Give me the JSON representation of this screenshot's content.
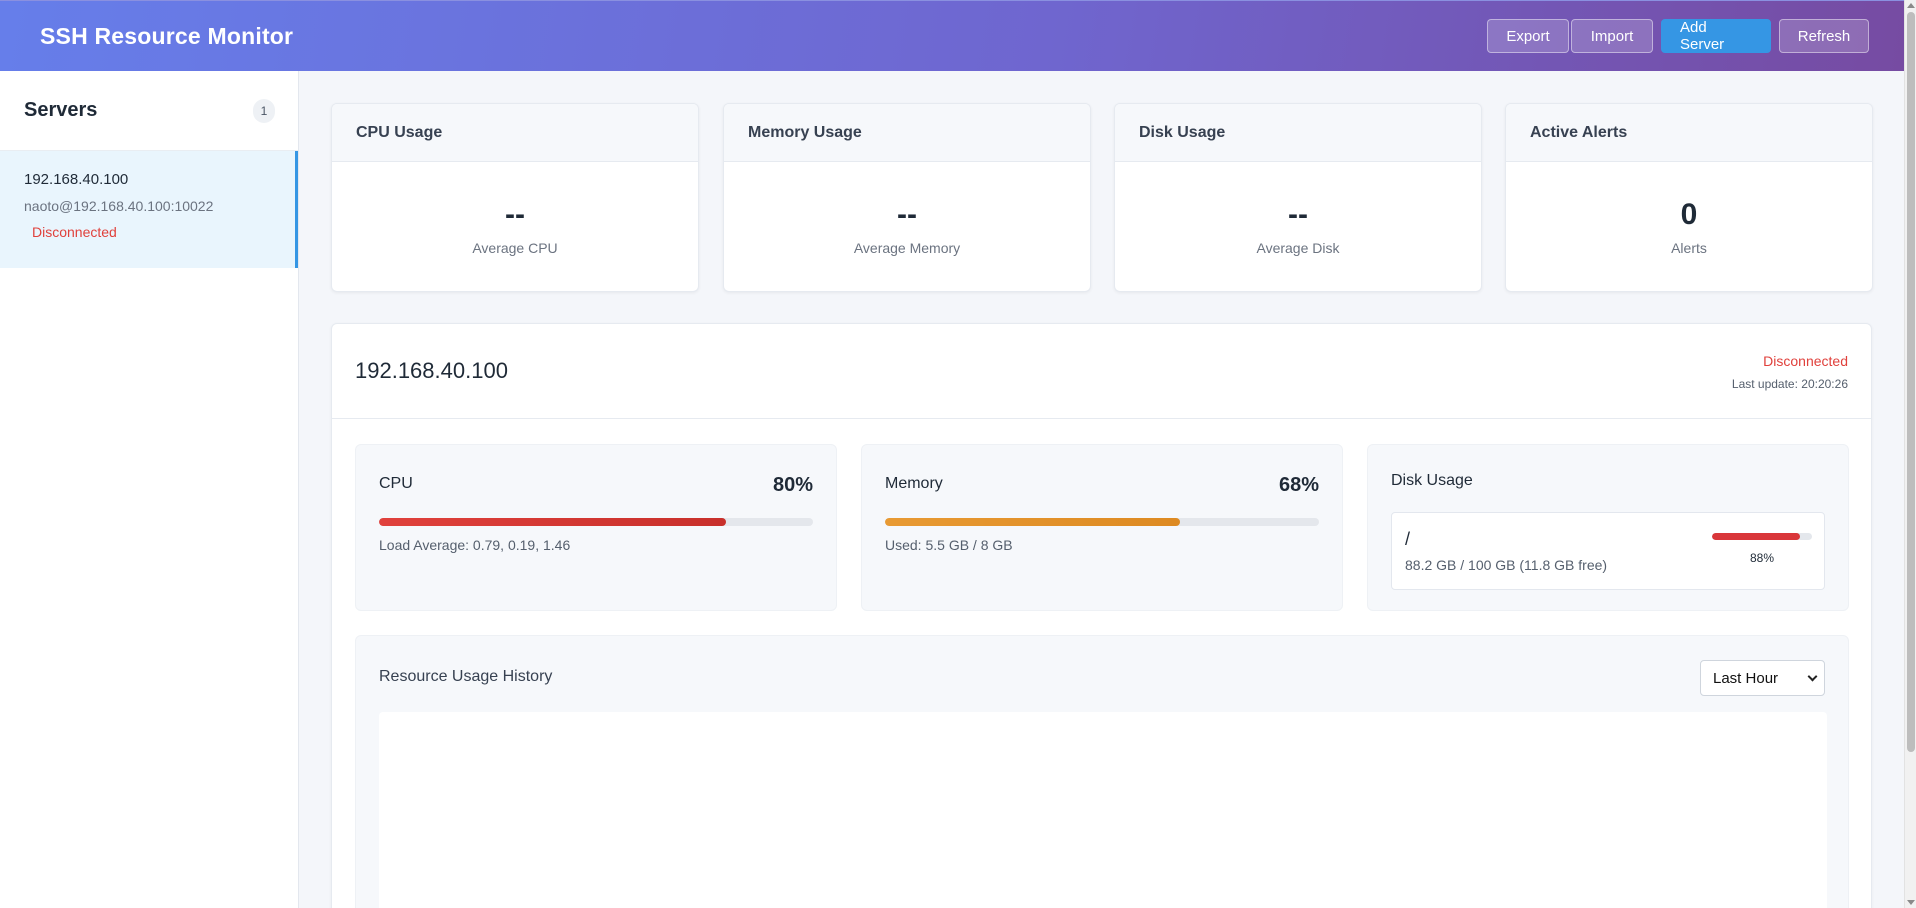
{
  "header": {
    "title": "SSH Resource Monitor",
    "buttons": {
      "export": "Export",
      "import": "Import",
      "add": "Add Server",
      "refresh": "Refresh"
    },
    "colors": {
      "gradient_start": "#667eea",
      "gradient_end": "#764ba2",
      "add_button": "#3596e4"
    }
  },
  "sidebar": {
    "title": "Servers",
    "count": "1",
    "servers": [
      {
        "name": "192.168.40.100",
        "connection": "naoto@192.168.40.100:10022",
        "status": "Disconnected"
      }
    ]
  },
  "summary": {
    "cpu": {
      "title": "CPU Usage",
      "value": "--",
      "label": "Average CPU"
    },
    "memory": {
      "title": "Memory Usage",
      "value": "--",
      "label": "Average Memory"
    },
    "disk": {
      "title": "Disk Usage",
      "value": "--",
      "label": "Average Disk"
    },
    "alerts": {
      "title": "Active Alerts",
      "value": "0",
      "label": "Alerts"
    }
  },
  "detail": {
    "title": "192.168.40.100",
    "status": "Disconnected",
    "last_update": "Last update: 20:20:26",
    "cpu": {
      "label": "CPU",
      "value": "80%",
      "fraction": 0.8,
      "note": "Load Average: 0.79, 0.19, 1.46"
    },
    "memory": {
      "label": "Memory",
      "value": "68%",
      "fraction": 0.68,
      "note": "Used: 5.5 GB / 8 GB"
    },
    "disk": {
      "label": "Disk Usage",
      "entries": [
        {
          "mount": "/",
          "size": "88.2 GB / 100 GB (11.8 GB free)",
          "percent": "88%",
          "fraction": 0.88
        }
      ]
    },
    "history": {
      "title": "Resource Usage History",
      "range": "Last Hour"
    }
  }
}
